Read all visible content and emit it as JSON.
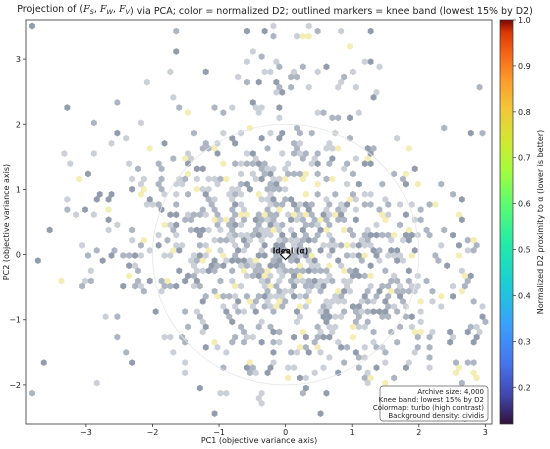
{
  "chart_data": {
    "type": "scatter",
    "title": "Projection of (F_S, F_W, F_V) via PCA; color = normalized D2; outlined markers = knee band (lowest 15% by D2)",
    "title_parts": {
      "prefix": "Projection of (",
      "vars": [
        "F",
        "S",
        "F",
        "W",
        "F",
        "V"
      ],
      "suffix": ") via PCA; color = normalized D2; outlined markers = knee band (lowest 15% by D2)"
    },
    "xlabel": "PC1 (objective variance axis)",
    "ylabel": "PC2 (objective variance axis)",
    "xlim": [
      -3.9,
      3.1
    ],
    "ylim": [
      -2.6,
      3.6
    ],
    "xticks": [
      -3,
      -2,
      -1,
      0,
      1,
      2,
      3
    ],
    "yticks": [
      -2,
      -1,
      0,
      1,
      2,
      3
    ],
    "xtick_labels": [
      "−3",
      "−2",
      "−1",
      "0",
      "1",
      "2",
      "3"
    ],
    "ytick_labels": [
      "−2",
      "−1",
      "0",
      "1",
      "2",
      "3"
    ],
    "colorbar": {
      "label": "Normalized D2 proximity to α (lower is better)",
      "range": [
        0.12,
        1.0
      ],
      "ticks": [
        0.2,
        0.3,
        0.4,
        0.5,
        0.6,
        0.7,
        0.8,
        0.9,
        1.0
      ],
      "tick_labels": [
        "0.2",
        "0.3",
        "0.4",
        "0.5",
        "0.6",
        "0.7",
        "0.8",
        "0.9",
        "1.0"
      ]
    },
    "ideal_label": "Ideal (α)",
    "ideal_point": [
      0,
      0
    ],
    "annotation_lines": [
      "Archive size: 4,000",
      "Knee band: lowest 15% by D2",
      "Colormap: turbo (high contrast)",
      "Background density: cividis"
    ],
    "density_colors": {
      "low": "#c8cdd6",
      "mid": "#a9b1bf",
      "high": "#8d97a8",
      "highlight": "#f3ecb0"
    }
  }
}
